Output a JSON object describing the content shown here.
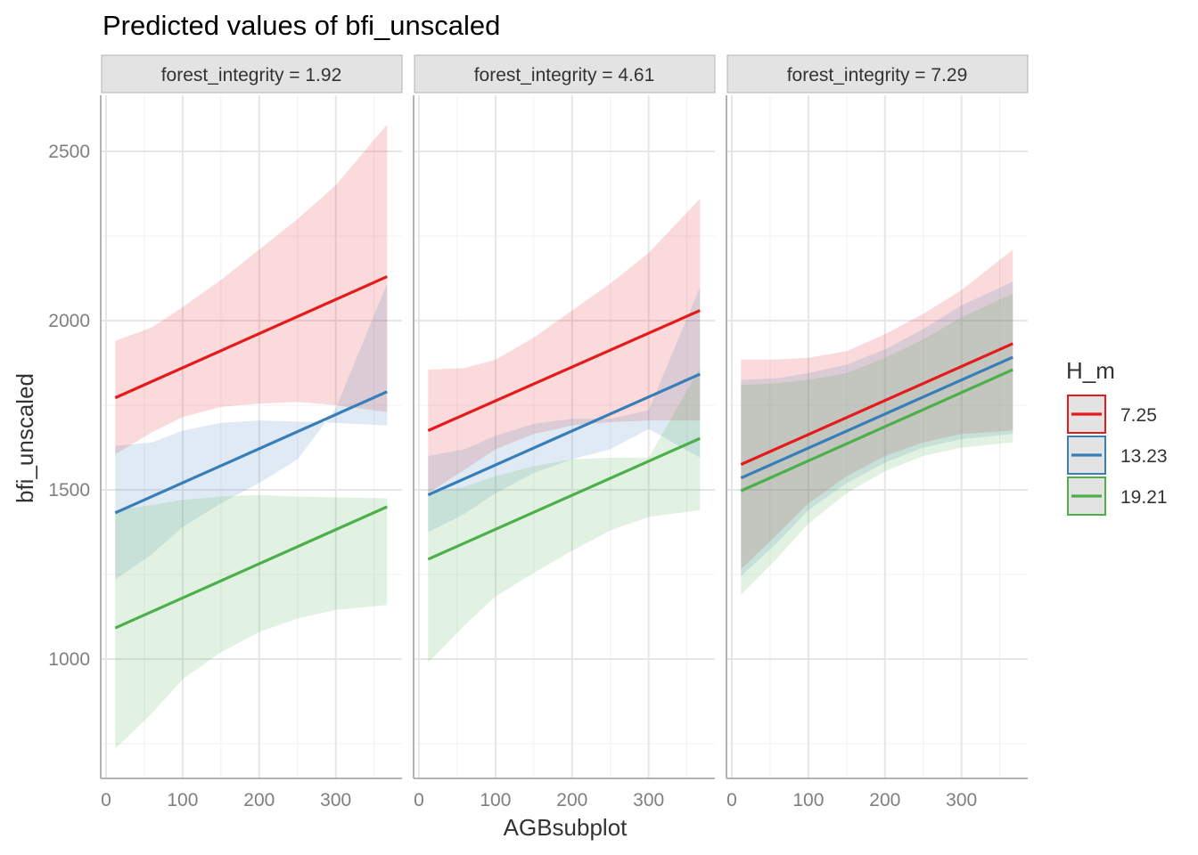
{
  "chart_data": {
    "type": "line",
    "title": "Predicted values of bfi_unscaled",
    "xlabel": "AGBsubplot",
    "ylabel": "bfi_unscaled",
    "xlim": [
      0,
      380
    ],
    "ylim": [
      680,
      2660
    ],
    "x_ticks": [
      0,
      100,
      200,
      300
    ],
    "y_ticks": [
      1000,
      1500,
      2000,
      2500
    ],
    "grid": true,
    "legend": {
      "title": "H_m",
      "position": "right",
      "entries": [
        {
          "label": "7.25",
          "color": "#e41a1c"
        },
        {
          "label": "13.23",
          "color": "#377eb8"
        },
        {
          "label": "19.21",
          "color": "#4daf4a"
        }
      ]
    },
    "x_range": [
      12,
      367
    ],
    "panels": [
      {
        "label": "forest_integrity = 1.92",
        "series": [
          {
            "name": "7.25",
            "color": "#e41a1c",
            "line": [
              1772,
              2130
            ],
            "ci_upper": [
              [
                12,
                1940
              ],
              [
                60,
                1980
              ],
              [
                100,
                2040
              ],
              [
                150,
                2120
              ],
              [
                200,
                2210
              ],
              [
                250,
                2300
              ],
              [
                300,
                2400
              ],
              [
                367,
                2580
              ]
            ],
            "ci_lower": [
              [
                12,
                1605
              ],
              [
                60,
                1670
              ],
              [
                100,
                1715
              ],
              [
                150,
                1745
              ],
              [
                200,
                1755
              ],
              [
                250,
                1760
              ],
              [
                300,
                1750
              ],
              [
                367,
                1730
              ]
            ]
          },
          {
            "name": "13.23",
            "color": "#377eb8",
            "line": [
              1432,
              1790
            ],
            "ci_upper": [
              [
                12,
                1630
              ],
              [
                60,
                1640
              ],
              [
                100,
                1675
              ],
              [
                150,
                1698
              ],
              [
                200,
                1705
              ],
              [
                250,
                1702
              ],
              [
                300,
                1698
              ],
              [
                367,
                1690
              ]
            ],
            "ci_lower": [
              [
                12,
                1235
              ],
              [
                60,
                1310
              ],
              [
                100,
                1390
              ],
              [
                150,
                1460
              ],
              [
                200,
                1520
              ],
              [
                250,
                1590
              ],
              [
                300,
                1740
              ],
              [
                367,
                2110
              ]
            ]
          },
          {
            "name": "19.21",
            "color": "#4daf4a",
            "line": [
              1092,
              1450
            ],
            "ci_upper": [
              [
                12,
                1440
              ],
              [
                60,
                1455
              ],
              [
                100,
                1470
              ],
              [
                150,
                1480
              ],
              [
                200,
                1485
              ],
              [
                250,
                1480
              ],
              [
                300,
                1478
              ],
              [
                367,
                1475
              ]
            ],
            "ci_lower": [
              [
                12,
                735
              ],
              [
                60,
                840
              ],
              [
                100,
                940
              ],
              [
                150,
                1020
              ],
              [
                200,
                1080
              ],
              [
                250,
                1120
              ],
              [
                300,
                1145
              ],
              [
                367,
                1160
              ]
            ]
          }
        ]
      },
      {
        "label": "forest_integrity = 4.61",
        "series": [
          {
            "name": "7.25",
            "color": "#e41a1c",
            "line": [
              1675,
              2030
            ],
            "ci_upper": [
              [
                12,
                1855
              ],
              [
                60,
                1860
              ],
              [
                100,
                1885
              ],
              [
                150,
                1950
              ],
              [
                200,
                2030
              ],
              [
                250,
                2110
              ],
              [
                300,
                2200
              ],
              [
                367,
                2360
              ]
            ],
            "ci_lower": [
              [
                12,
                1490
              ],
              [
                60,
                1560
              ],
              [
                100,
                1620
              ],
              [
                150,
                1665
              ],
              [
                200,
                1690
              ],
              [
                250,
                1700
              ],
              [
                300,
                1705
              ],
              [
                367,
                1705
              ]
            ]
          },
          {
            "name": "13.23",
            "color": "#377eb8",
            "line": [
              1485,
              1842
            ],
            "ci_upper": [
              [
                12,
                1600
              ],
              [
                60,
                1620
              ],
              [
                100,
                1660
              ],
              [
                150,
                1695
              ],
              [
                200,
                1710
              ],
              [
                250,
                1710
              ],
              [
                300,
                1735
              ],
              [
                367,
                2100
              ]
            ],
            "ci_lower": [
              [
                12,
                1375
              ],
              [
                60,
                1430
              ],
              [
                100,
                1490
              ],
              [
                150,
                1550
              ],
              [
                200,
                1590
              ],
              [
                250,
                1620
              ],
              [
                300,
                1680
              ],
              [
                367,
                1595
              ]
            ]
          },
          {
            "name": "19.21",
            "color": "#4daf4a",
            "line": [
              1295,
              1652
            ],
            "ci_upper": [
              [
                12,
                1490
              ],
              [
                60,
                1510
              ],
              [
                100,
                1540
              ],
              [
                150,
                1570
              ],
              [
                200,
                1590
              ],
              [
                250,
                1595
              ],
              [
                300,
                1595
              ],
              [
                367,
                1860
              ]
            ],
            "ci_lower": [
              [
                12,
                990
              ],
              [
                60,
                1100
              ],
              [
                100,
                1185
              ],
              [
                150,
                1255
              ],
              [
                200,
                1320
              ],
              [
                250,
                1380
              ],
              [
                300,
                1420
              ],
              [
                367,
                1440
              ]
            ]
          }
        ]
      },
      {
        "label": "forest_integrity = 7.29",
        "series": [
          {
            "name": "7.25",
            "color": "#e41a1c",
            "line": [
              1575,
              1932
            ],
            "ci_upper": [
              [
                12,
                1885
              ],
              [
                60,
                1885
              ],
              [
                100,
                1890
              ],
              [
                150,
                1910
              ],
              [
                200,
                1960
              ],
              [
                250,
                2020
              ],
              [
                300,
                2090
              ],
              [
                367,
                2210
              ]
            ],
            "ci_lower": [
              [
                12,
                1265
              ],
              [
                60,
                1370
              ],
              [
                100,
                1460
              ],
              [
                150,
                1540
              ],
              [
                200,
                1600
              ],
              [
                250,
                1640
              ],
              [
                300,
                1665
              ],
              [
                367,
                1675
              ]
            ]
          },
          {
            "name": "13.23",
            "color": "#377eb8",
            "line": [
              1535,
              1892
            ],
            "ci_upper": [
              [
                12,
                1825
              ],
              [
                60,
                1830
              ],
              [
                100,
                1845
              ],
              [
                150,
                1870
              ],
              [
                200,
                1915
              ],
              [
                250,
                1975
              ],
              [
                300,
                2045
              ],
              [
                367,
                2115
              ]
            ],
            "ci_lower": [
              [
                12,
                1245
              ],
              [
                60,
                1345
              ],
              [
                100,
                1440
              ],
              [
                150,
                1520
              ],
              [
                200,
                1580
              ],
              [
                250,
                1625
              ],
              [
                300,
                1650
              ],
              [
                367,
                1665
              ]
            ]
          },
          {
            "name": "19.21",
            "color": "#4daf4a",
            "line": [
              1497,
              1855
            ],
            "ci_upper": [
              [
                12,
                1810
              ],
              [
                60,
                1815
              ],
              [
                100,
                1825
              ],
              [
                150,
                1845
              ],
              [
                200,
                1890
              ],
              [
                250,
                1945
              ],
              [
                300,
                2010
              ],
              [
                367,
                2080
              ]
            ],
            "ci_lower": [
              [
                12,
                1190
              ],
              [
                60,
                1300
              ],
              [
                100,
                1400
              ],
              [
                150,
                1490
              ],
              [
                200,
                1555
              ],
              [
                250,
                1600
              ],
              [
                300,
                1625
              ],
              [
                367,
                1640
              ]
            ]
          }
        ]
      }
    ]
  }
}
